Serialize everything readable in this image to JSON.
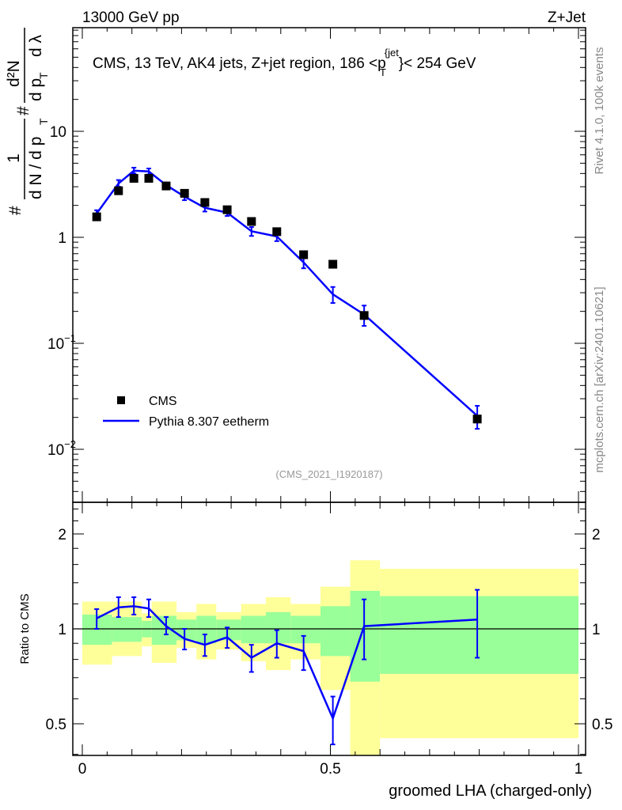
{
  "header": {
    "left": "13000 GeV pp",
    "right": "Z+Jet"
  },
  "side": {
    "rivet": "Rivet 4.1.0,  100k events",
    "mcplots": "mcplots.cern.ch [arXiv:2401.10621]"
  },
  "watermark": "(CMS_2021_I1920187)",
  "chart_data": [
    {
      "type": "scatter",
      "title": "CMS, 13 TeV, AK4 jets, Z+jet region, 186 <p_T^{jet}< 254 GeV",
      "title_parts": {
        "main": "CMS, 13 TeV, AK4 jets, Z+jet region, 186 <p",
        "sup": "{jet",
        "sub": "T",
        "tail": "}< 254 GeV"
      },
      "ylabel": "1/N dN/dp_T · d²N/(dp_T dλ)",
      "ylabel_parts": {
        "a": "#",
        "b": "1",
        "c": "d N / d p",
        "d": "T",
        "e": "#",
        "f": "d²N",
        "g": "d p",
        "h": "T",
        "i": "d λ"
      },
      "yscale": "log",
      "ylim": [
        0.00316,
        95
      ],
      "xlim": [
        -0.02,
        1.015
      ],
      "ytick_labels": [
        {
          "v": 10,
          "t": "10"
        },
        {
          "v": 1,
          "t": "1"
        },
        {
          "v": 0.1,
          "t": "10",
          "e": "−1"
        },
        {
          "v": 0.01,
          "t": "10",
          "e": "−2"
        }
      ],
      "legend": {
        "placement": "lower-left",
        "entries": [
          "CMS",
          "Pythia 8.307 eetherm"
        ]
      },
      "x": [
        0.029,
        0.073,
        0.104,
        0.134,
        0.169,
        0.206,
        0.247,
        0.292,
        0.341,
        0.392,
        0.446,
        0.505,
        0.568,
        0.796
      ],
      "series": [
        {
          "name": "CMS",
          "marker": "square",
          "color": "#000000",
          "values": [
            1.56,
            2.75,
            3.6,
            3.6,
            3.05,
            2.6,
            2.13,
            1.82,
            1.41,
            1.13,
            0.685,
            0.557,
            0.183,
            0.0193
          ]
        },
        {
          "name": "Pythia 8.307 eetherm",
          "marker": "line",
          "color": "#0000ff",
          "values": [
            1.68,
            3.22,
            4.25,
            4.18,
            3.11,
            2.42,
            1.9,
            1.71,
            1.14,
            1.02,
            0.58,
            0.29,
            0.187,
            0.0207
          ],
          "err_lo": [
            1.56,
            3.0,
            4.0,
            3.92,
            2.93,
            2.24,
            1.75,
            1.59,
            1.03,
            0.92,
            0.51,
            0.24,
            0.146,
            0.0156
          ],
          "err_hi": [
            1.8,
            3.47,
            4.54,
            4.46,
            3.29,
            2.6,
            2.04,
            1.84,
            1.25,
            1.12,
            0.65,
            0.34,
            0.227,
            0.0257
          ]
        }
      ]
    },
    {
      "type": "line",
      "ylabel": "Ratio to CMS",
      "xlabel": "groomed LHA (charged-only)",
      "yscale": "log",
      "ylim": [
        0.397,
        2.52
      ],
      "xtick_labels": [
        {
          "v": 0,
          "t": "0"
        },
        {
          "v": 0.5,
          "t": "0.5"
        },
        {
          "v": 1,
          "t": "1"
        }
      ],
      "ytick_labels": [
        {
          "v": 2,
          "t": "2"
        },
        {
          "v": 1,
          "t": "1"
        },
        {
          "v": 0.5,
          "t": "0.5"
        }
      ],
      "bin_edges": [
        0,
        0.06,
        0.12,
        0.14,
        0.19,
        0.23,
        0.27,
        0.32,
        0.37,
        0.42,
        0.48,
        0.54,
        0.6,
        1.0
      ],
      "band_stat": {
        "color": "#99ff99",
        "lo": [
          0.89,
          0.91,
          0.94,
          0.89,
          0.92,
          0.9,
          0.92,
          0.9,
          0.9,
          0.9,
          0.82,
          0.68,
          0.72
        ],
        "hi": [
          1.11,
          1.09,
          1.06,
          1.1,
          1.07,
          1.1,
          1.07,
          1.1,
          1.13,
          1.1,
          1.18,
          1.32,
          1.27
        ]
      },
      "band_total": {
        "color": "#ffff99",
        "lo": [
          0.77,
          0.82,
          0.88,
          0.78,
          0.87,
          0.8,
          0.86,
          0.79,
          0.74,
          0.8,
          0.64,
          0.39,
          0.45
        ],
        "hi": [
          1.22,
          1.22,
          1.12,
          1.22,
          1.13,
          1.2,
          1.13,
          1.2,
          1.26,
          1.2,
          1.36,
          1.65,
          1.55
        ]
      },
      "x": [
        0.029,
        0.073,
        0.104,
        0.134,
        0.169,
        0.206,
        0.247,
        0.292,
        0.341,
        0.392,
        0.446,
        0.505,
        0.568,
        0.796
      ],
      "series": [
        {
          "name": "Pythia 8.307 eetherm",
          "color": "#0000ff",
          "values": [
            1.08,
            1.17,
            1.18,
            1.16,
            1.02,
            0.93,
            0.89,
            0.94,
            0.81,
            0.9,
            0.85,
            0.52,
            1.02,
            1.07
          ],
          "err_lo": [
            1.0,
            1.09,
            1.11,
            1.09,
            0.96,
            0.86,
            0.82,
            0.87,
            0.73,
            0.81,
            0.74,
            0.43,
            0.8,
            0.81
          ],
          "err_hi": [
            1.155,
            1.26,
            1.26,
            1.24,
            1.09,
            1.0,
            0.96,
            1.01,
            0.89,
            0.99,
            0.95,
            0.61,
            1.24,
            1.33
          ]
        }
      ]
    }
  ]
}
